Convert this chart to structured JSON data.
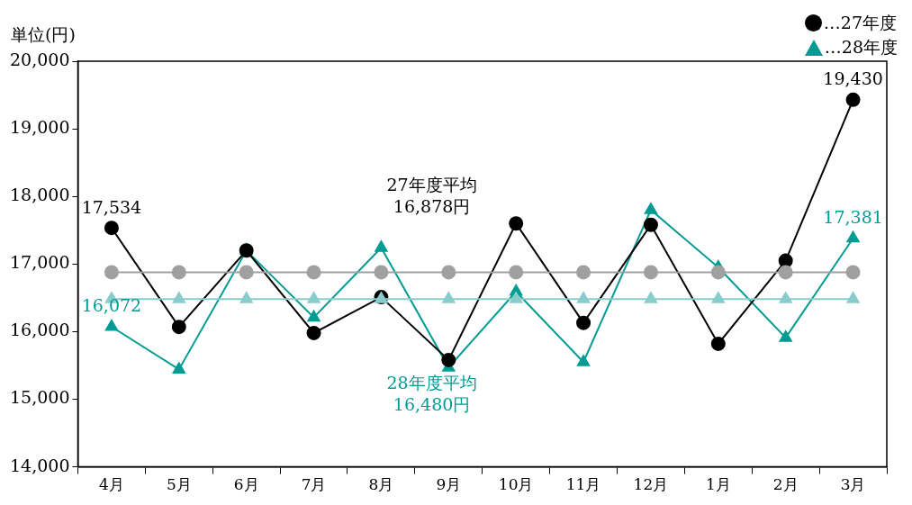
{
  "chart_data": {
    "type": "line",
    "ylabel": "単位(円)",
    "categories": [
      "4月",
      "5月",
      "6月",
      "7月",
      "8月",
      "9月",
      "10月",
      "11月",
      "12月",
      "1月",
      "2月",
      "3月"
    ],
    "series": [
      {
        "color": "#a0a0a0",
        "marker": "circle",
        "values": [
          16878,
          16878,
          16878,
          16878,
          16878,
          16878,
          16878,
          16878,
          16878,
          16878,
          16878,
          16878
        ]
      },
      {
        "color": "#88cccc",
        "marker": "triangle",
        "values": [
          16480,
          16480,
          16480,
          16480,
          16480,
          16480,
          16480,
          16480,
          16480,
          16480,
          16480,
          16480
        ]
      },
      {
        "name": "…27年度",
        "color": "#000000",
        "marker": "circle",
        "values": [
          17534,
          16070,
          17200,
          15980,
          16510,
          15580,
          17600,
          16130,
          17580,
          15820,
          17050,
          19430
        ],
        "value_labels": [
          "17,534",
          null,
          null,
          null,
          null,
          null,
          null,
          null,
          null,
          null,
          null,
          "19,430"
        ]
      },
      {
        "name": "…28年度",
        "color": "#009c93",
        "marker": "triangle",
        "values": [
          16072,
          15440,
          17200,
          16210,
          17240,
          15470,
          16590,
          15550,
          17800,
          16950,
          15910,
          17381
        ],
        "value_labels": [
          "16,072",
          null,
          null,
          null,
          null,
          null,
          null,
          null,
          null,
          null,
          null,
          "17,381"
        ]
      }
    ],
    "annotations": [
      "27年度平均\n16,878円",
      "28年度平均\n16,480円"
    ],
    "ylim": [
      14000,
      20000
    ],
    "yticks": [
      {
        "value": 14000,
        "label": "14,000"
      },
      {
        "value": 15000,
        "label": "15,000"
      },
      {
        "value": 16000,
        "label": "16,000"
      },
      {
        "value": 17000,
        "label": "17,000"
      },
      {
        "value": 18000,
        "label": "18,000"
      },
      {
        "value": 19000,
        "label": "19,000"
      },
      {
        "value": 20000,
        "label": "20,000"
      }
    ],
    "grid": false,
    "legend": "top right"
  }
}
